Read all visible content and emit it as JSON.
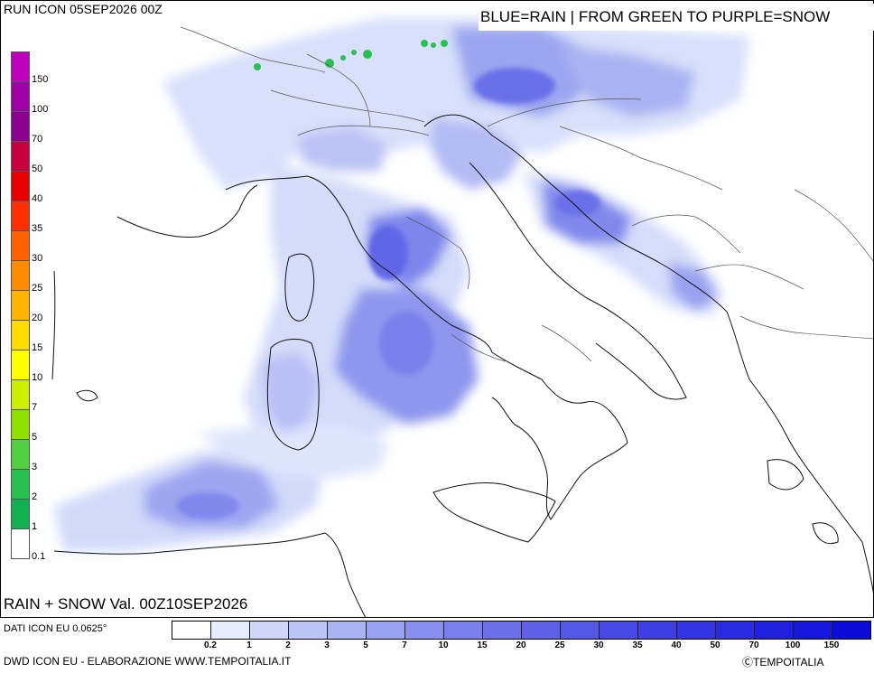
{
  "header": {
    "run_label": "RUN ICON 05SEP2026 00Z",
    "legend_title": "BLUE=RAIN | FROM GREEN TO PURPLE=SNOW"
  },
  "map": {
    "valid_label": "RAIN + SNOW Val. 00Z10SEP2026"
  },
  "snow_scale": {
    "colors": [
      "#c000c0",
      "#a000a8",
      "#8c0090",
      "#c80040",
      "#e60000",
      "#ff3000",
      "#ff6000",
      "#ff8c00",
      "#ffb400",
      "#ffdc00",
      "#ffff00",
      "#ccf000",
      "#90e000",
      "#50d040",
      "#28c050",
      "#10b050",
      "#ffffff"
    ],
    "ticks": [
      "150",
      "100",
      "70",
      "50",
      "40",
      "35",
      "30",
      "25",
      "20",
      "15",
      "10",
      "7",
      "5",
      "3",
      "2",
      "1",
      "0.1"
    ]
  },
  "rain_scale": {
    "colors": [
      "#ffffff",
      "#e6ecfb",
      "#cfd8f8",
      "#bcc6f6",
      "#aab4f3",
      "#98a2f0",
      "#8890ee",
      "#7a80eb",
      "#6c70e8",
      "#6062e6",
      "#5456e5",
      "#4848e4",
      "#3e3ee3",
      "#3333e2",
      "#2a2ae0",
      "#2020de",
      "#1616dc",
      "#0c0cda"
    ],
    "ticks": [
      "0.2",
      "1",
      "2",
      "3",
      "5",
      "7",
      "10",
      "15",
      "20",
      "25",
      "30",
      "35",
      "40",
      "50",
      "70",
      "100",
      "150"
    ]
  },
  "footer": {
    "source": "DATI ICON EU 0.0625°",
    "credits": "DWD ICON EU - ELABORAZIONE WWW.TEMPOITALIA.IT",
    "copyright": "ⒸTEMPOITALIA"
  }
}
